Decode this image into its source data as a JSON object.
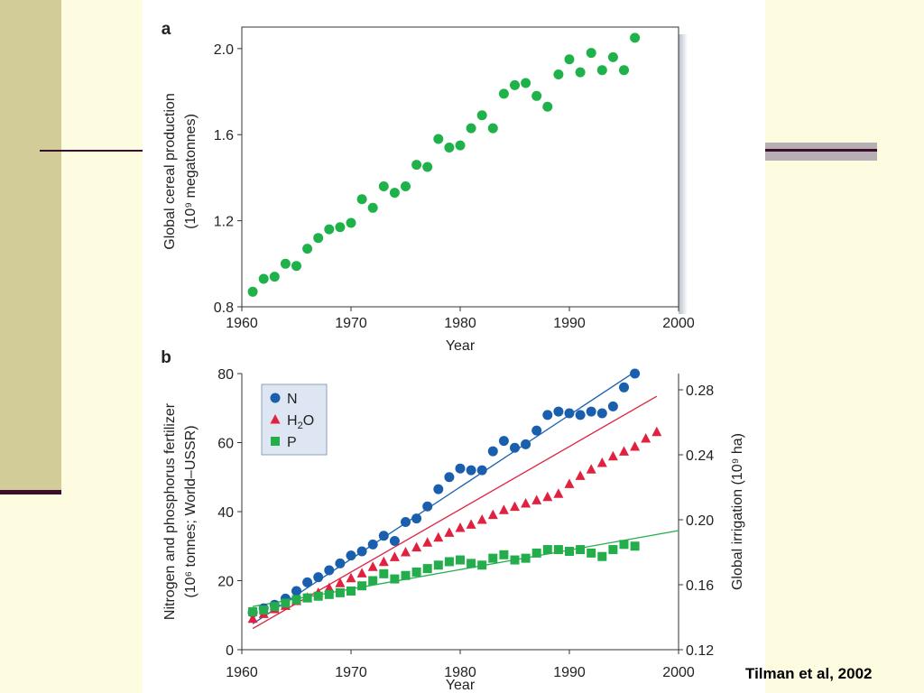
{
  "slide": {
    "credit": "Tilman et al, 2002"
  },
  "colors": {
    "cereal": "#1fb14a",
    "nitrogen": "#1a5fae",
    "water": "#e0213f",
    "phosphorus": "#23ad4b"
  },
  "chart_data": [
    {
      "type": "scatter",
      "panel_label": "a",
      "title": "",
      "xlabel": "Year",
      "ylabel_line1": "Global cereal production",
      "ylabel_line2": "(10⁹ megatonnes)",
      "xlim": [
        1960,
        2000
      ],
      "ylim": [
        0.8,
        2.1
      ],
      "x_ticks": [
        1960,
        1970,
        1980,
        1990,
        2000
      ],
      "y_ticks": [
        0.8,
        1.2,
        1.6,
        2.0
      ],
      "y_tick_labels": [
        "0.8",
        "1.2",
        "1.6",
        "2.0"
      ],
      "series": [
        {
          "x": [
            1961,
            1962,
            1963,
            1964,
            1965,
            1966,
            1967,
            1968,
            1969,
            1970,
            1971,
            1972,
            1973,
            1974,
            1975,
            1976,
            1977,
            1978,
            1979,
            1980,
            1981,
            1982,
            1983,
            1984,
            1985,
            1986,
            1987,
            1988,
            1989,
            1990,
            1991,
            1992,
            1993,
            1994,
            1995,
            1996
          ],
          "y": [
            0.87,
            0.93,
            0.94,
            1.0,
            0.99,
            1.07,
            1.12,
            1.16,
            1.17,
            1.19,
            1.3,
            1.26,
            1.36,
            1.33,
            1.36,
            1.46,
            1.45,
            1.58,
            1.54,
            1.55,
            1.63,
            1.69,
            1.63,
            1.79,
            1.83,
            1.84,
            1.78,
            1.73,
            1.88,
            1.95,
            1.89,
            1.98,
            1.9,
            1.96,
            1.9,
            2.05
          ]
        }
      ]
    },
    {
      "type": "scatter",
      "panel_label": "b",
      "title": "",
      "xlabel": "Year",
      "ylabel_line1": "Nitrogen and phosphorus fertilizer",
      "ylabel_line2": "(10⁶ tonnes; World–USSR)",
      "y2label": "Global irrigation (10⁹ ha)",
      "xlim": [
        1960,
        2000
      ],
      "ylim": [
        0,
        80
      ],
      "y2lim": [
        0.12,
        0.29
      ],
      "x_ticks": [
        1960,
        1970,
        1980,
        1990,
        2000
      ],
      "y_ticks": [
        0,
        20,
        40,
        60,
        80
      ],
      "y2_ticks": [
        0.12,
        0.16,
        0.2,
        0.24,
        0.28
      ],
      "y2_tick_labels": [
        "0.12",
        "0.16",
        "0.20",
        "0.24",
        "0.28"
      ],
      "legend": {
        "placement": "top-left"
      },
      "series": [
        {
          "name": "N",
          "marker": "circle",
          "axis": "left",
          "x": [
            1961,
            1962,
            1963,
            1964,
            1965,
            1966,
            1967,
            1968,
            1969,
            1970,
            1971,
            1972,
            1973,
            1974,
            1975,
            1976,
            1977,
            1978,
            1979,
            1980,
            1981,
            1982,
            1983,
            1984,
            1985,
            1986,
            1987,
            1988,
            1989,
            1990,
            1991,
            1992,
            1993,
            1994,
            1995,
            1996
          ],
          "y": [
            10.8,
            12.0,
            13.0,
            14.8,
            17.0,
            19.5,
            21.0,
            23.0,
            25.0,
            27.3,
            28.5,
            30.5,
            33.0,
            31.5,
            37.0,
            38.0,
            41.5,
            46.5,
            50.0,
            52.5,
            52.0,
            52.0,
            57.5,
            60.5,
            58.5,
            59.5,
            63.5,
            68.0,
            69.0,
            68.5,
            68.0,
            69.0,
            68.5,
            70.5,
            76.0,
            80.0
          ],
          "trend": [
            [
              1961,
              7.5
            ],
            [
              1996,
              80.5
            ]
          ]
        },
        {
          "name": "H2O",
          "marker": "triangle",
          "axis": "right",
          "x": [
            1961,
            1962,
            1963,
            1964,
            1965,
            1966,
            1967,
            1968,
            1969,
            1970,
            1971,
            1972,
            1973,
            1974,
            1975,
            1976,
            1977,
            1978,
            1979,
            1980,
            1981,
            1982,
            1983,
            1984,
            1985,
            1986,
            1987,
            1988,
            1989,
            1990,
            1991,
            1992,
            1993,
            1994,
            1995,
            1996,
            1997,
            1998
          ],
          "y": [
            0.139,
            0.142,
            0.145,
            0.147,
            0.15,
            0.152,
            0.155,
            0.158,
            0.161,
            0.164,
            0.167,
            0.171,
            0.174,
            0.177,
            0.18,
            0.183,
            0.186,
            0.189,
            0.192,
            0.195,
            0.197,
            0.2,
            0.203,
            0.206,
            0.208,
            0.21,
            0.212,
            0.214,
            0.216,
            0.222,
            0.227,
            0.231,
            0.235,
            0.239,
            0.242,
            0.245,
            0.25,
            0.254
          ],
          "trend": [
            [
              1961,
              0.133
            ],
            [
              1998,
              0.276
            ]
          ]
        },
        {
          "name": "P",
          "marker": "square",
          "axis": "left",
          "x": [
            1961,
            1962,
            1963,
            1964,
            1965,
            1966,
            1967,
            1968,
            1969,
            1970,
            1971,
            1972,
            1973,
            1974,
            1975,
            1976,
            1977,
            1978,
            1979,
            1980,
            1981,
            1982,
            1983,
            1984,
            1985,
            1986,
            1987,
            1988,
            1989,
            1990,
            1991,
            1992,
            1993,
            1994,
            1995,
            1996
          ],
          "y": [
            11.0,
            11.5,
            12.5,
            13.5,
            14.5,
            15.0,
            15.5,
            16.0,
            16.5,
            17.0,
            18.5,
            20.0,
            22.0,
            20.5,
            21.5,
            22.5,
            23.5,
            24.5,
            25.5,
            26.0,
            25.0,
            24.5,
            26.5,
            27.5,
            26.0,
            26.5,
            28.0,
            29.0,
            29.0,
            28.5,
            29.0,
            28.0,
            27.0,
            29.0,
            30.5,
            30.0
          ],
          "trend": [
            [
              1961,
              12.5
            ],
            [
              2000,
              34.5
            ]
          ]
        }
      ]
    }
  ]
}
